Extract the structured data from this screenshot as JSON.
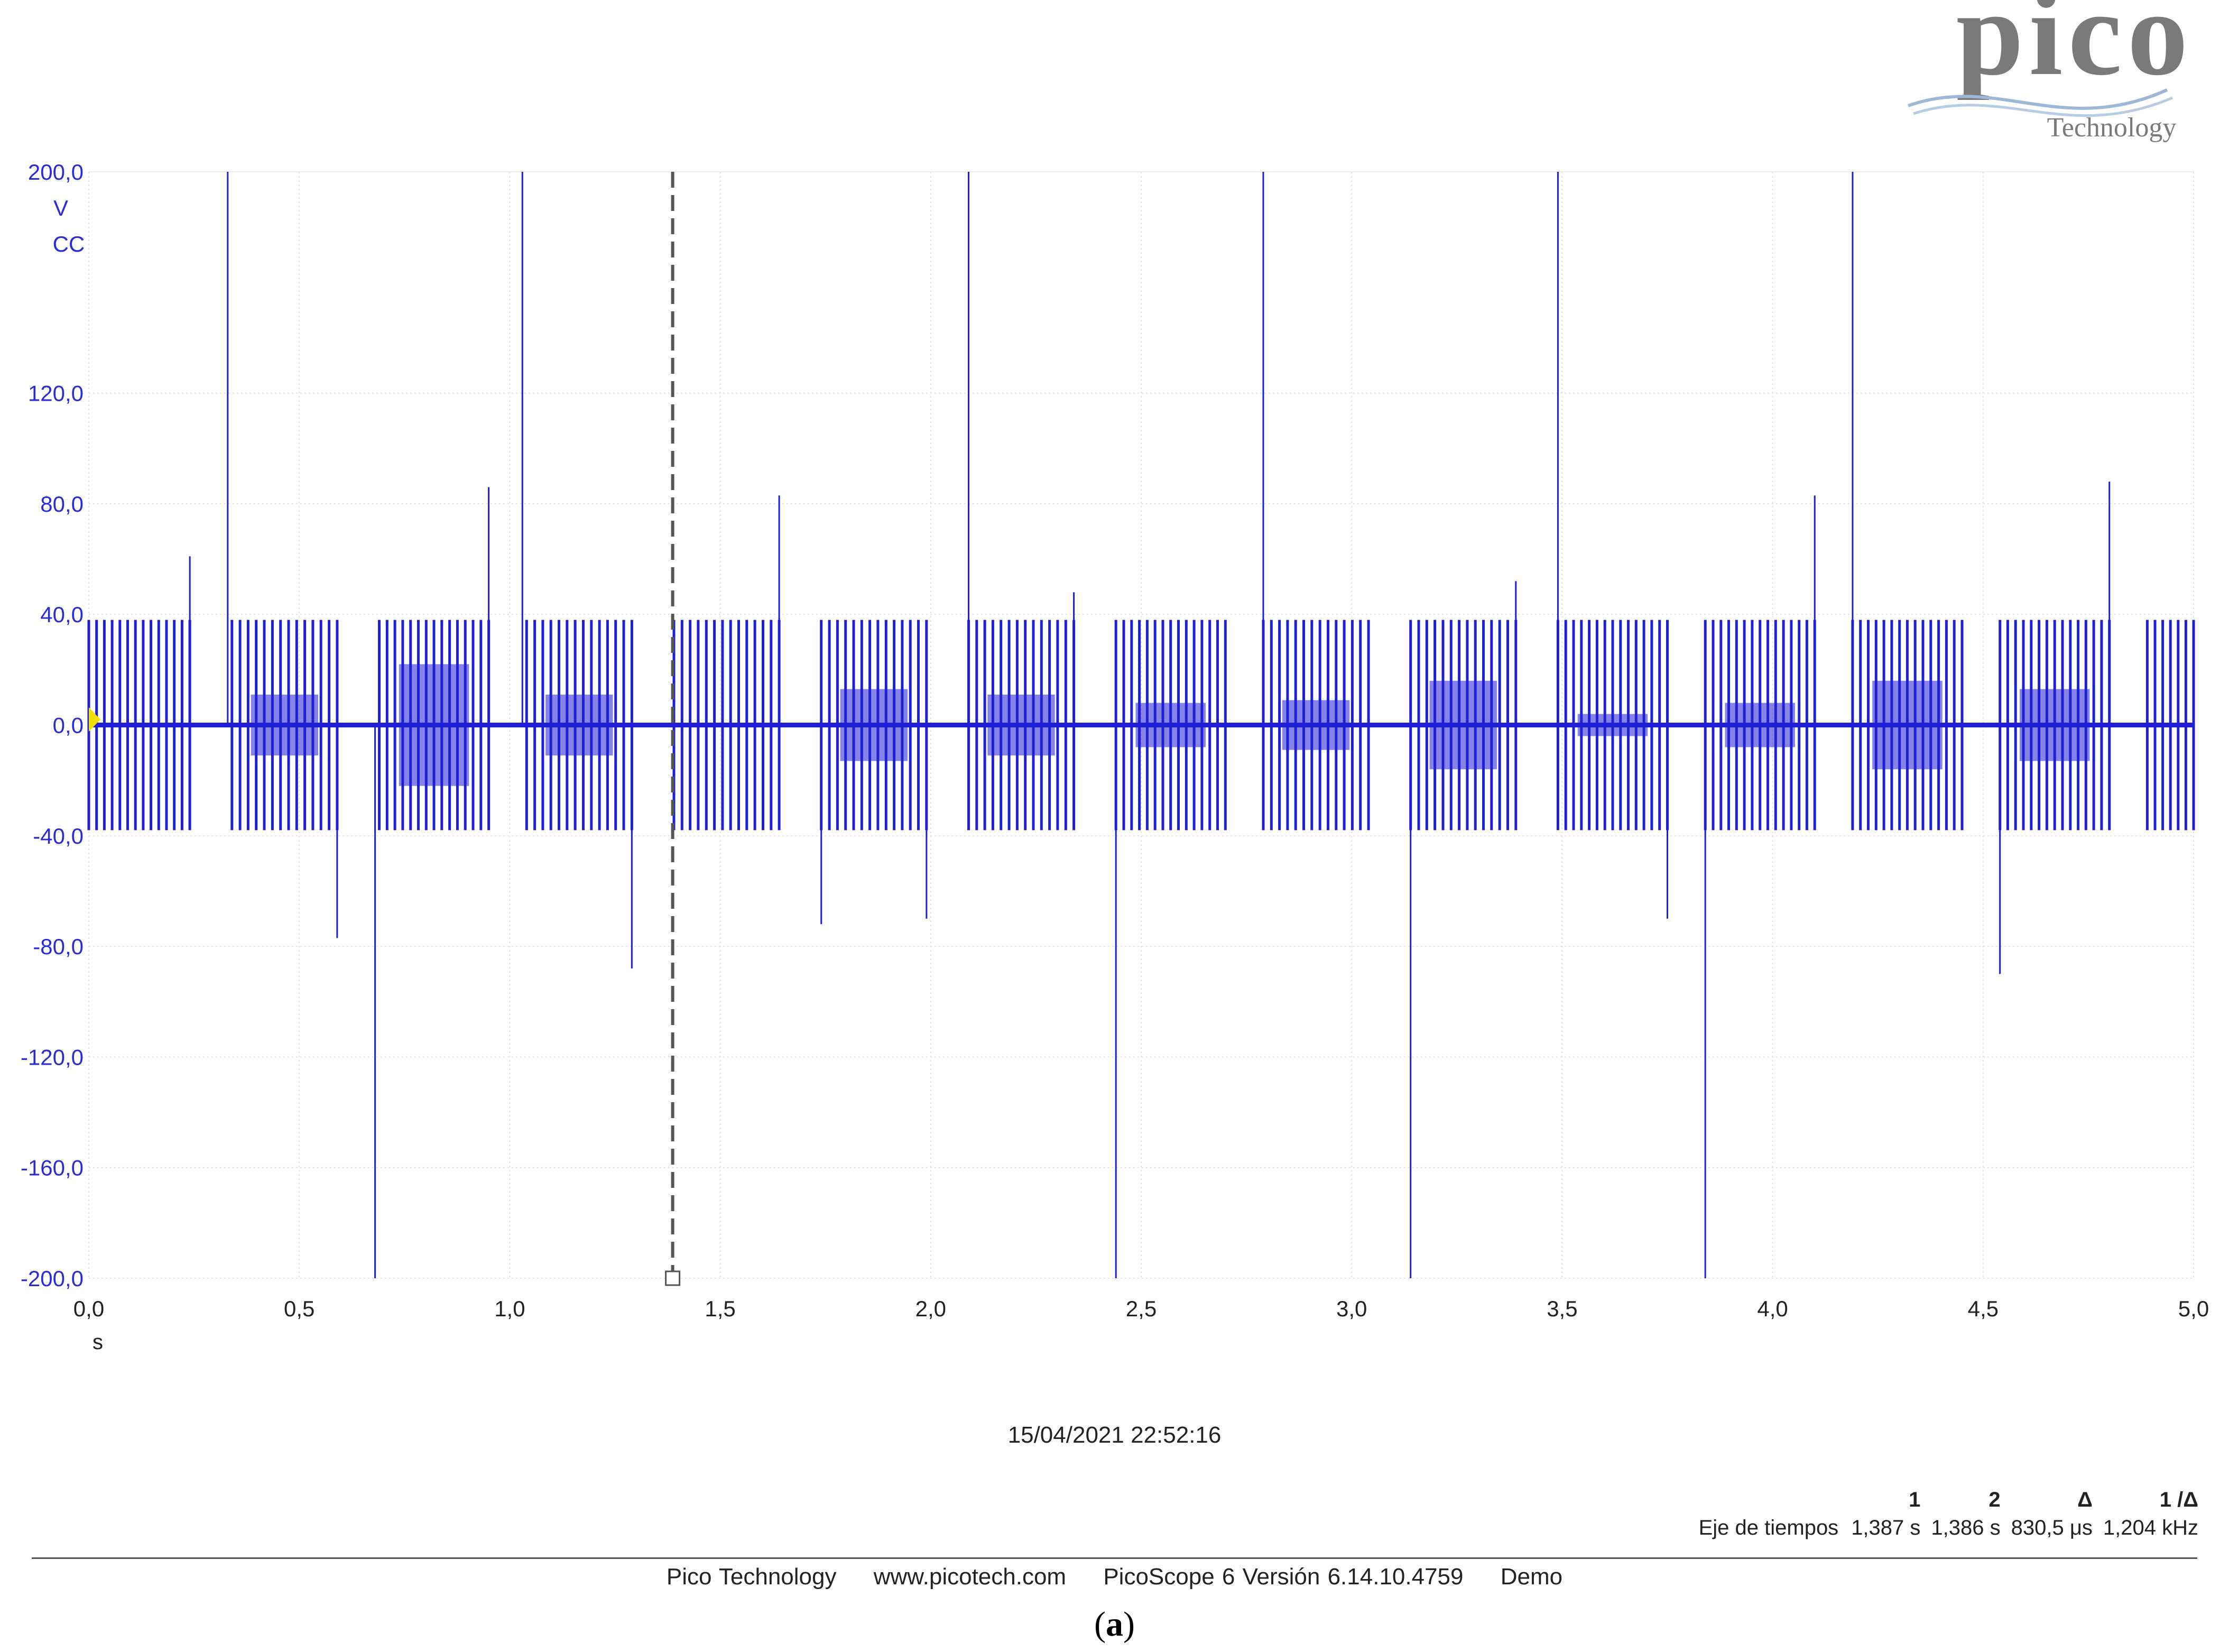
{
  "logo": {
    "brand": "pico",
    "sub": "Technology"
  },
  "chart_data": {
    "type": "line",
    "title": "",
    "ylabel_unit": "V",
    "ylabel_coupling": "CC",
    "xlabel_unit": "s",
    "xlim": [
      0,
      5
    ],
    "ylim": [
      -200,
      200
    ],
    "yticks": [
      200,
      120,
      80,
      40,
      0,
      -40,
      -80,
      -120,
      -160,
      -200
    ],
    "ytick_labels": [
      "200,0",
      "120,0",
      "80,0",
      "40,0",
      "0,0",
      "-40,0",
      "-80,0",
      "-120,0",
      "-160,0",
      "-200,0"
    ],
    "xticks": [
      0,
      0.5,
      1,
      1.5,
      2,
      2.5,
      3,
      3.5,
      4,
      4.5,
      5
    ],
    "xtick_labels": [
      "0,0",
      "0,5",
      "1,0",
      "1,5",
      "2,0",
      "2,5",
      "3,0",
      "3,5",
      "4,0",
      "4,5",
      "5,0"
    ],
    "grid": true,
    "cursor_x": 1.387,
    "series": [
      {
        "color": "#1f1fd6",
        "burst_amplitude": 38,
        "bursts": [
          {
            "start": 0.0,
            "end": 0.24,
            "inner": 0
          },
          {
            "start": 0.34,
            "end": 0.59,
            "inner": 11
          },
          {
            "start": 0.69,
            "end": 0.95,
            "inner": 22
          },
          {
            "start": 1.04,
            "end": 1.29,
            "inner": 11
          },
          {
            "start": 1.39,
            "end": 1.64,
            "inner": 0
          },
          {
            "start": 1.74,
            "end": 1.99,
            "inner": 13
          },
          {
            "start": 2.09,
            "end": 2.34,
            "inner": 11
          },
          {
            "start": 2.44,
            "end": 2.7,
            "inner": 8
          },
          {
            "start": 2.79,
            "end": 3.04,
            "inner": 9
          },
          {
            "start": 3.14,
            "end": 3.39,
            "inner": 16
          },
          {
            "start": 3.49,
            "end": 3.75,
            "inner": 4
          },
          {
            "start": 3.84,
            "end": 4.1,
            "inner": 8
          },
          {
            "start": 4.19,
            "end": 4.45,
            "inner": 16
          },
          {
            "start": 4.54,
            "end": 4.8,
            "inner": 13
          },
          {
            "start": 4.89,
            "end": 5.0,
            "inner": 0
          }
        ],
        "spikes": [
          {
            "x": 0.24,
            "y": 61
          },
          {
            "x": 0.33,
            "y": 200
          },
          {
            "x": 0.59,
            "y": -77
          },
          {
            "x": 0.68,
            "y": -200
          },
          {
            "x": 0.95,
            "y": 86
          },
          {
            "x": 1.03,
            "y": 200
          },
          {
            "x": 1.29,
            "y": -88
          },
          {
            "x": 1.64,
            "y": 83
          },
          {
            "x": 1.74,
            "y": -72
          },
          {
            "x": 1.99,
            "y": -70
          },
          {
            "x": 2.09,
            "y": 200
          },
          {
            "x": 2.34,
            "y": 48
          },
          {
            "x": 2.44,
            "y": -200
          },
          {
            "x": 2.79,
            "y": 200
          },
          {
            "x": 3.14,
            "y": -200
          },
          {
            "x": 3.39,
            "y": 52
          },
          {
            "x": 3.49,
            "y": 200
          },
          {
            "x": 3.75,
            "y": -70
          },
          {
            "x": 3.84,
            "y": -200
          },
          {
            "x": 4.1,
            "y": 83
          },
          {
            "x": 4.19,
            "y": 200
          },
          {
            "x": 4.54,
            "y": -90
          },
          {
            "x": 4.8,
            "y": 88
          }
        ]
      }
    ]
  },
  "timestamp": "15/04/2021 22:52:16",
  "cursors": {
    "headers": [
      "1",
      "2",
      "Δ",
      "1 /Δ"
    ],
    "row_label": "Eje de tiempos",
    "values": [
      "1,387 s",
      "1,386 s",
      "830,5 μs",
      "1,204 kHz"
    ]
  },
  "footer": {
    "company": "Pico Technology",
    "url": "www.picotech.com",
    "version": "PicoScope 6 Versión 6.14.10.4759",
    "mode": "Demo"
  },
  "caption": {
    "open": "(",
    "label": "a",
    "close": ")"
  }
}
